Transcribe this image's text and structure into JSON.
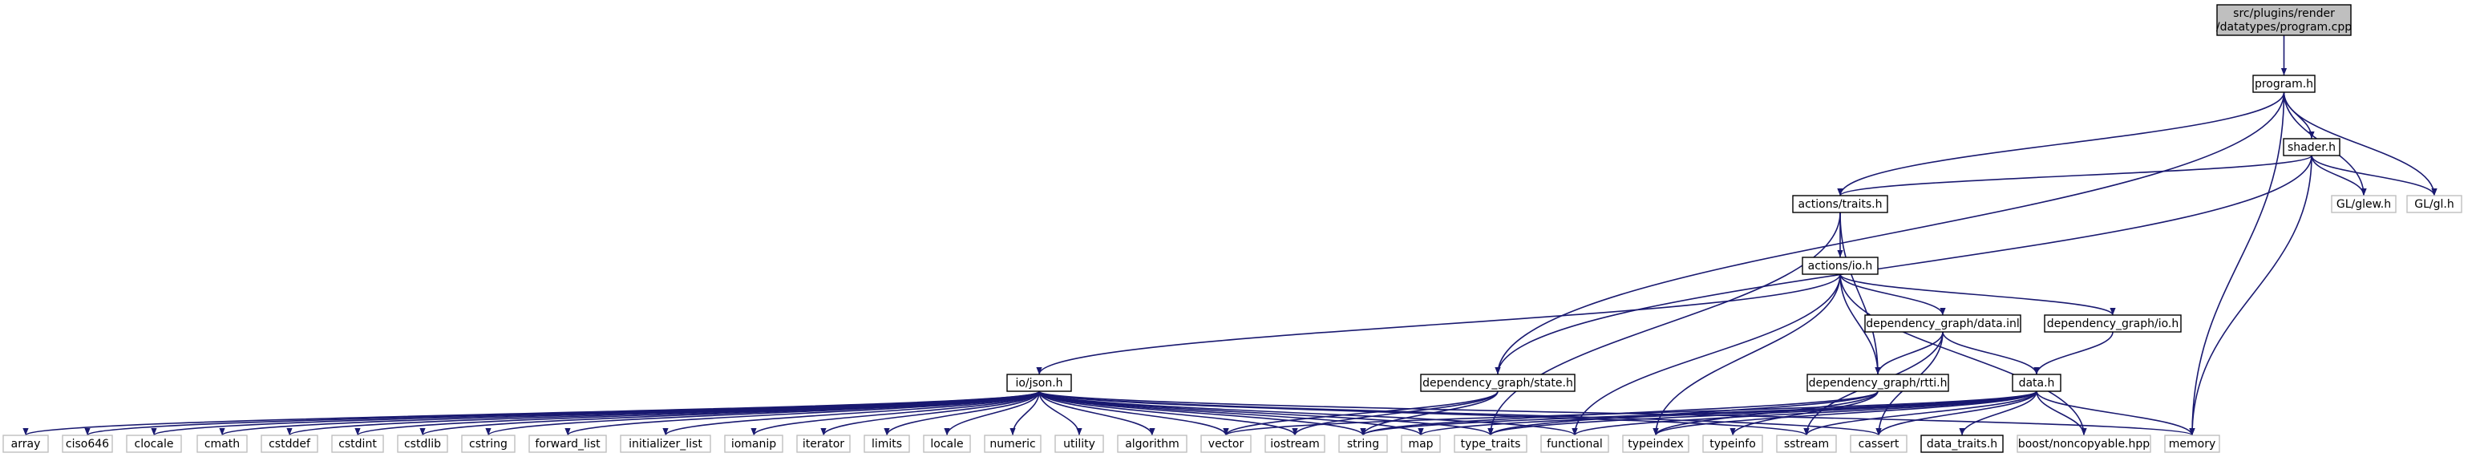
{
  "colors": {
    "edge": "#191970",
    "root_fill": "#bfbfbf",
    "box_stroke_strong": "#000000",
    "box_stroke_weak": "#bfbfbf",
    "box_fill": "#ffffff",
    "text": "#000000"
  },
  "nodes": {
    "root": {
      "lines": [
        "src/plugins/render",
        "/datatypes/program.cpp"
      ]
    },
    "program_h": {
      "lines": [
        "program.h"
      ]
    },
    "shader_h": {
      "lines": [
        "shader.h"
      ]
    },
    "gl_glew_h": {
      "lines": [
        "GL/glew.h"
      ]
    },
    "gl_gl_h": {
      "lines": [
        "GL/gl.h"
      ]
    },
    "actions_traits_h": {
      "lines": [
        "actions/traits.h"
      ]
    },
    "actions_io_h": {
      "lines": [
        "actions/io.h"
      ]
    },
    "dg_data_inl": {
      "lines": [
        "dependency_graph/data.inl"
      ]
    },
    "dg_io_h": {
      "lines": [
        "dependency_graph/io.h"
      ]
    },
    "io_json_h": {
      "lines": [
        "io/json.h"
      ]
    },
    "dg_state_h": {
      "lines": [
        "dependency_graph/state.h"
      ]
    },
    "dg_rtti_h": {
      "lines": [
        "dependency_graph/rtti.h"
      ]
    },
    "data_h": {
      "lines": [
        "data.h"
      ]
    },
    "array": {
      "lines": [
        "array"
      ]
    },
    "ciso646": {
      "lines": [
        "ciso646"
      ]
    },
    "clocale": {
      "lines": [
        "clocale"
      ]
    },
    "cmath": {
      "lines": [
        "cmath"
      ]
    },
    "cstddef": {
      "lines": [
        "cstddef"
      ]
    },
    "cstdint": {
      "lines": [
        "cstdint"
      ]
    },
    "cstdlib": {
      "lines": [
        "cstdlib"
      ]
    },
    "cstring": {
      "lines": [
        "cstring"
      ]
    },
    "forward_list": {
      "lines": [
        "forward_list"
      ]
    },
    "initializer_list": {
      "lines": [
        "initializer_list"
      ]
    },
    "iomanip": {
      "lines": [
        "iomanip"
      ]
    },
    "iterator": {
      "lines": [
        "iterator"
      ]
    },
    "limits": {
      "lines": [
        "limits"
      ]
    },
    "locale": {
      "lines": [
        "locale"
      ]
    },
    "numeric": {
      "lines": [
        "numeric"
      ]
    },
    "utility": {
      "lines": [
        "utility"
      ]
    },
    "algorithm": {
      "lines": [
        "algorithm"
      ]
    },
    "vector": {
      "lines": [
        "vector"
      ]
    },
    "iostream": {
      "lines": [
        "iostream"
      ]
    },
    "string": {
      "lines": [
        "string"
      ]
    },
    "map": {
      "lines": [
        "map"
      ]
    },
    "type_traits": {
      "lines": [
        "type_traits"
      ]
    },
    "functional": {
      "lines": [
        "functional"
      ]
    },
    "typeindex": {
      "lines": [
        "typeindex"
      ]
    },
    "typeinfo": {
      "lines": [
        "typeinfo"
      ]
    },
    "sstream": {
      "lines": [
        "sstream"
      ]
    },
    "cassert": {
      "lines": [
        "cassert"
      ]
    },
    "data_traits_h": {
      "lines": [
        "data_traits.h"
      ]
    },
    "boost_noncopyable": {
      "lines": [
        "boost/noncopyable.hpp"
      ]
    },
    "memory": {
      "lines": [
        "memory"
      ]
    }
  },
  "edges": [
    [
      "root",
      "program_h"
    ],
    [
      "program_h",
      "shader_h"
    ],
    [
      "program_h",
      "gl_glew_h"
    ],
    [
      "program_h",
      "gl_gl_h"
    ],
    [
      "program_h",
      "actions_traits_h"
    ],
    [
      "program_h",
      "dg_state_h"
    ],
    [
      "program_h",
      "memory"
    ],
    [
      "shader_h",
      "gl_glew_h"
    ],
    [
      "shader_h",
      "gl_gl_h"
    ],
    [
      "shader_h",
      "actions_traits_h"
    ],
    [
      "shader_h",
      "dg_state_h"
    ],
    [
      "shader_h",
      "memory"
    ],
    [
      "actions_traits_h",
      "actions_io_h"
    ],
    [
      "actions_traits_h",
      "dg_rtti_h"
    ],
    [
      "actions_traits_h",
      "type_traits"
    ],
    [
      "actions_io_h",
      "io_json_h"
    ],
    [
      "actions_io_h",
      "dg_data_inl"
    ],
    [
      "actions_io_h",
      "dg_io_h"
    ],
    [
      "actions_io_h",
      "dg_rtti_h"
    ],
    [
      "actions_io_h",
      "functional"
    ],
    [
      "actions_io_h",
      "typeindex"
    ],
    [
      "actions_io_h",
      "boost_noncopyable"
    ],
    [
      "dg_data_inl",
      "dg_rtti_h"
    ],
    [
      "dg_data_inl",
      "data_h"
    ],
    [
      "dg_data_inl",
      "sstream"
    ],
    [
      "dg_data_inl",
      "cassert"
    ],
    [
      "dg_io_h",
      "data_h"
    ],
    [
      "io_json_h",
      "array"
    ],
    [
      "io_json_h",
      "ciso646"
    ],
    [
      "io_json_h",
      "clocale"
    ],
    [
      "io_json_h",
      "cmath"
    ],
    [
      "io_json_h",
      "cstddef"
    ],
    [
      "io_json_h",
      "cstdint"
    ],
    [
      "io_json_h",
      "cstdlib"
    ],
    [
      "io_json_h",
      "cstring"
    ],
    [
      "io_json_h",
      "forward_list"
    ],
    [
      "io_json_h",
      "initializer_list"
    ],
    [
      "io_json_h",
      "iomanip"
    ],
    [
      "io_json_h",
      "iterator"
    ],
    [
      "io_json_h",
      "limits"
    ],
    [
      "io_json_h",
      "locale"
    ],
    [
      "io_json_h",
      "numeric"
    ],
    [
      "io_json_h",
      "utility"
    ],
    [
      "io_json_h",
      "algorithm"
    ],
    [
      "io_json_h",
      "vector"
    ],
    [
      "io_json_h",
      "iostream"
    ],
    [
      "io_json_h",
      "string"
    ],
    [
      "io_json_h",
      "map"
    ],
    [
      "io_json_h",
      "type_traits"
    ],
    [
      "io_json_h",
      "functional"
    ],
    [
      "io_json_h",
      "sstream"
    ],
    [
      "io_json_h",
      "cassert"
    ],
    [
      "io_json_h",
      "memory"
    ],
    [
      "dg_state_h",
      "vector"
    ],
    [
      "dg_state_h",
      "iostream"
    ],
    [
      "dg_state_h",
      "string"
    ],
    [
      "dg_rtti_h",
      "string"
    ],
    [
      "dg_rtti_h",
      "typeindex"
    ],
    [
      "dg_rtti_h",
      "typeinfo"
    ],
    [
      "dg_rtti_h",
      "type_traits"
    ],
    [
      "data_h",
      "vector"
    ],
    [
      "data_h",
      "string"
    ],
    [
      "data_h",
      "map"
    ],
    [
      "data_h",
      "type_traits"
    ],
    [
      "data_h",
      "functional"
    ],
    [
      "data_h",
      "typeindex"
    ],
    [
      "data_h",
      "sstream"
    ],
    [
      "data_h",
      "cassert"
    ],
    [
      "data_h",
      "data_traits_h"
    ],
    [
      "data_h",
      "boost_noncopyable"
    ],
    [
      "data_h",
      "memory"
    ]
  ]
}
